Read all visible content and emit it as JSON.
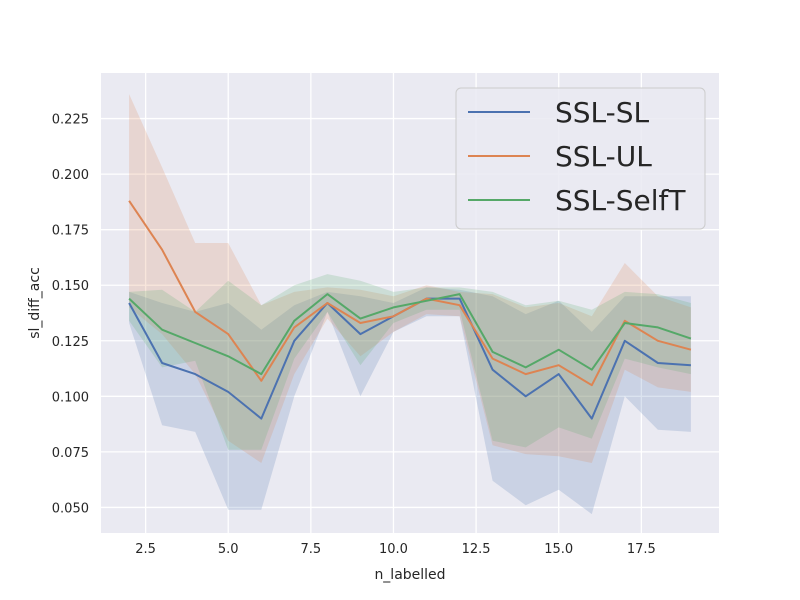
{
  "chart_data": {
    "type": "line",
    "title": "",
    "xlabel": "n_labelled",
    "ylabel": "sl_diff_acc",
    "xlim": [
      1.15,
      19.85
    ],
    "ylim": [
      0.0385,
      0.2455
    ],
    "xticks": [
      2.5,
      5.0,
      7.5,
      10.0,
      12.5,
      15.0,
      17.5
    ],
    "xtick_labels": [
      "2.5",
      "5.0",
      "7.5",
      "10.0",
      "12.5",
      "15.0",
      "17.5"
    ],
    "yticks": [
      0.05,
      0.075,
      0.1,
      0.125,
      0.15,
      0.175,
      0.2,
      0.225
    ],
    "ytick_labels": [
      "0.050",
      "0.075",
      "0.100",
      "0.125",
      "0.150",
      "0.175",
      "0.200",
      "0.225"
    ],
    "grid": true,
    "legend_position": "top-right",
    "x": [
      2,
      3,
      4,
      5,
      6,
      7,
      8,
      9,
      10,
      11,
      12,
      13,
      14,
      15,
      16,
      17,
      18,
      19
    ],
    "series": [
      {
        "name": "SSL-SL",
        "color": "#4c72b0",
        "values": [
          0.142,
          0.115,
          0.11,
          0.102,
          0.09,
          0.125,
          0.142,
          0.128,
          0.136,
          0.144,
          0.144,
          0.112,
          0.1,
          0.11,
          0.09,
          0.125,
          0.115,
          0.114
        ],
        "lower": [
          0.133,
          0.087,
          0.084,
          0.049,
          0.049,
          0.1,
          0.138,
          0.1,
          0.129,
          0.136,
          0.136,
          0.062,
          0.051,
          0.058,
          0.047,
          0.1,
          0.085,
          0.084
        ],
        "upper": [
          0.147,
          0.142,
          0.138,
          0.142,
          0.13,
          0.141,
          0.147,
          0.145,
          0.142,
          0.149,
          0.148,
          0.145,
          0.137,
          0.143,
          0.129,
          0.145,
          0.145,
          0.145
        ]
      },
      {
        "name": "SSL-UL",
        "color": "#dd8452",
        "values": [
          0.188,
          0.166,
          0.138,
          0.128,
          0.107,
          0.131,
          0.142,
          0.133,
          0.136,
          0.144,
          0.141,
          0.117,
          0.11,
          0.114,
          0.105,
          0.134,
          0.125,
          0.121
        ],
        "lower": [
          0.14,
          0.128,
          0.11,
          0.08,
          0.07,
          0.11,
          0.135,
          0.118,
          0.129,
          0.137,
          0.136,
          0.078,
          0.074,
          0.073,
          0.07,
          0.112,
          0.104,
          0.102
        ],
        "upper": [
          0.236,
          0.203,
          0.169,
          0.169,
          0.141,
          0.147,
          0.149,
          0.148,
          0.145,
          0.15,
          0.147,
          0.146,
          0.14,
          0.142,
          0.136,
          0.16,
          0.145,
          0.14
        ]
      },
      {
        "name": "SSL-SelfT",
        "color": "#55a868",
        "values": [
          0.144,
          0.13,
          0.124,
          0.118,
          0.11,
          0.134,
          0.146,
          0.135,
          0.14,
          0.143,
          0.146,
          0.12,
          0.113,
          0.121,
          0.112,
          0.133,
          0.131,
          0.126
        ],
        "lower": [
          0.134,
          0.113,
          0.116,
          0.076,
          0.076,
          0.117,
          0.138,
          0.114,
          0.133,
          0.139,
          0.139,
          0.08,
          0.077,
          0.086,
          0.081,
          0.117,
          0.113,
          0.11
        ],
        "upper": [
          0.147,
          0.148,
          0.138,
          0.152,
          0.141,
          0.15,
          0.155,
          0.152,
          0.147,
          0.149,
          0.149,
          0.147,
          0.141,
          0.143,
          0.139,
          0.147,
          0.146,
          0.142
        ]
      }
    ]
  }
}
